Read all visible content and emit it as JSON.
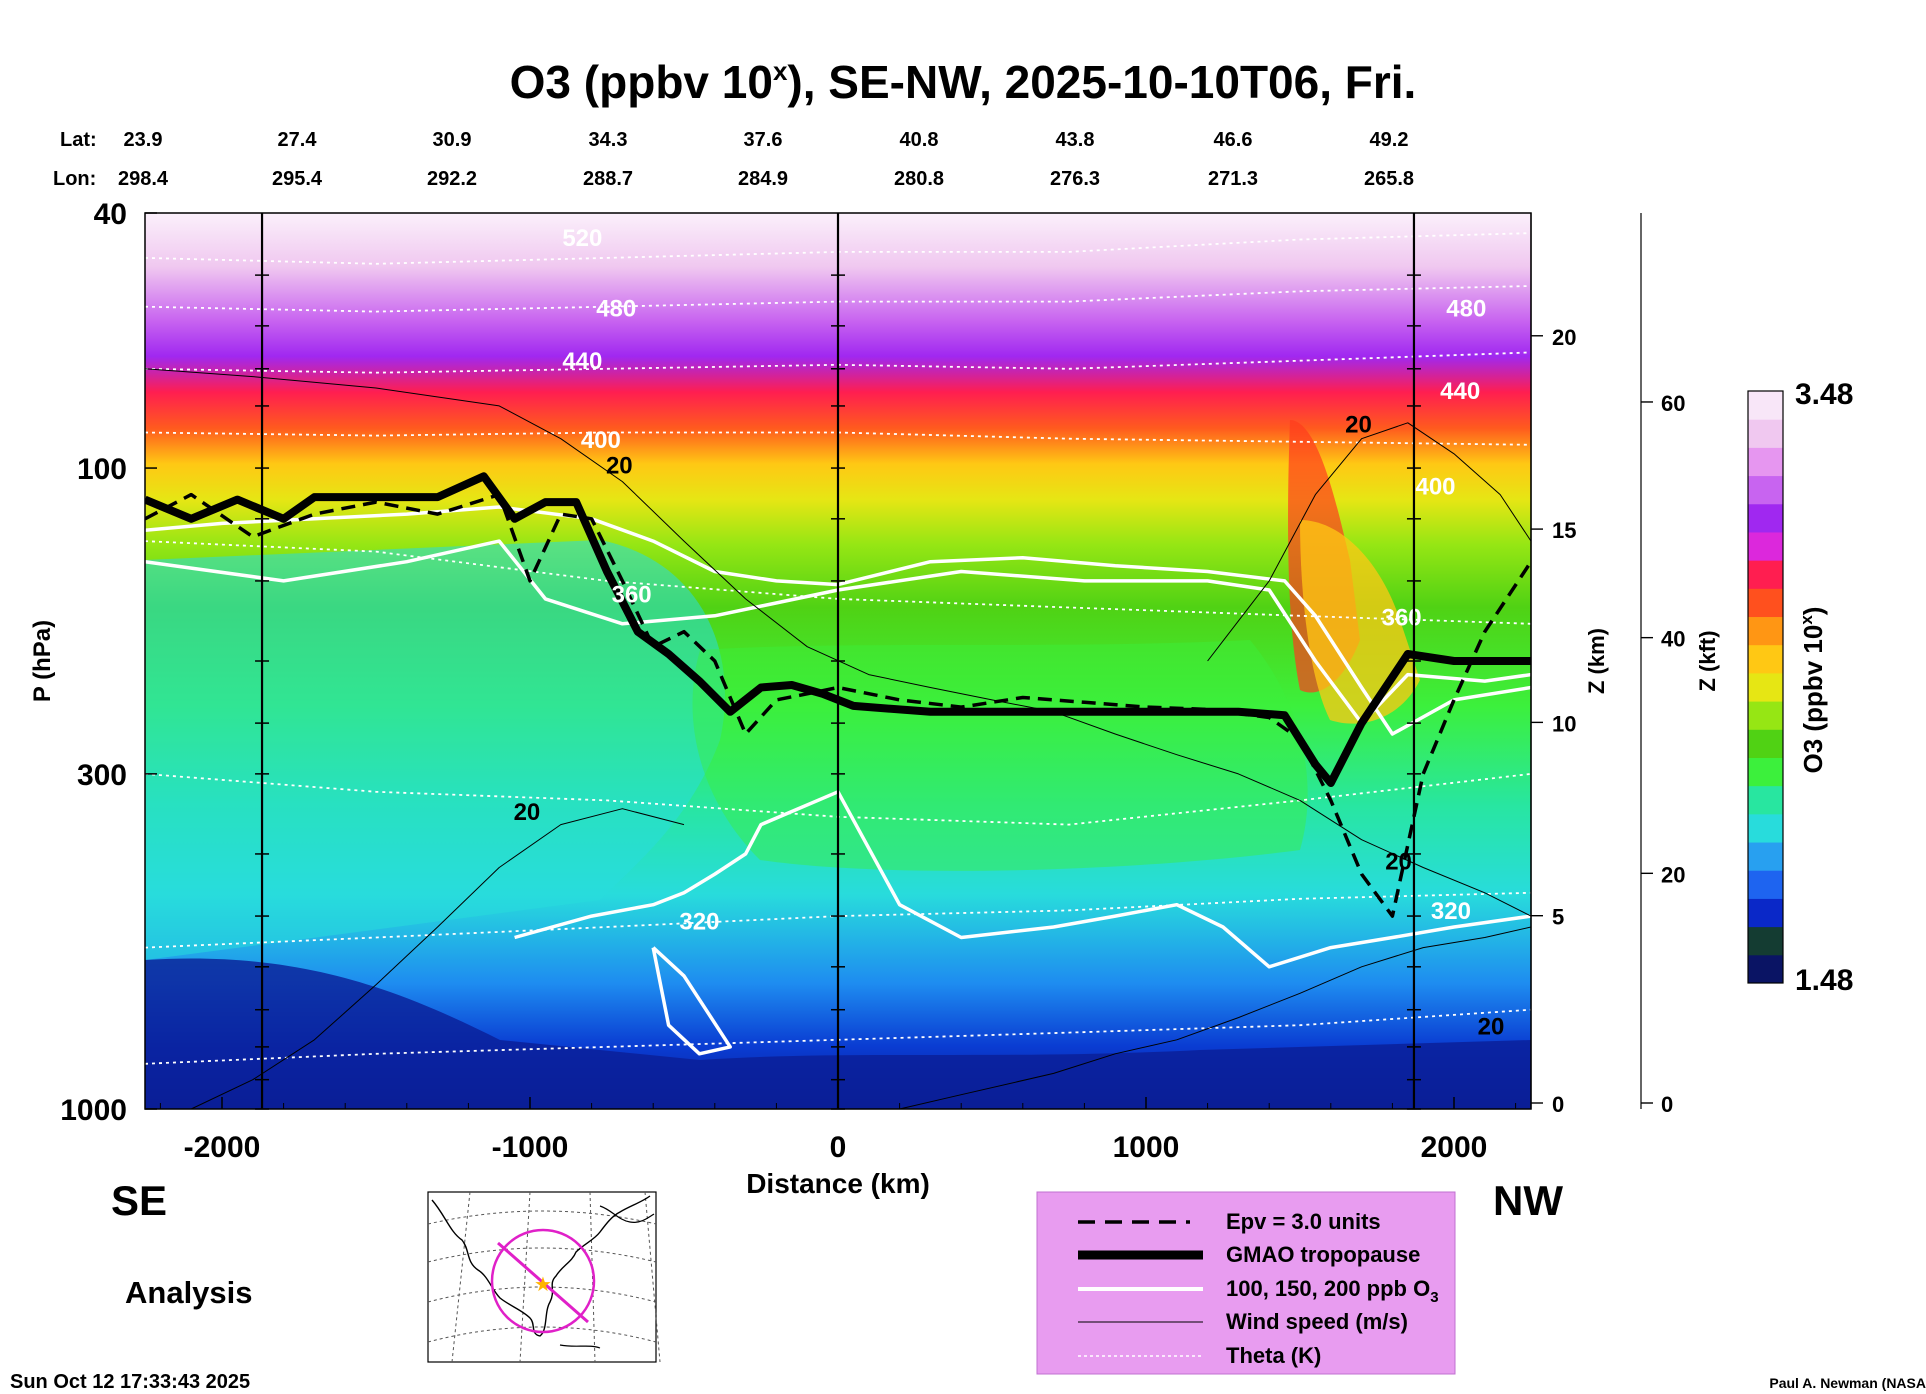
{
  "chart_data": {
    "type": "heatmap",
    "title": "O3 (ppbv 10",
    "title_sup": "x",
    "title_rest": "), SE-NW, 2025-10-10T06, Fri.",
    "lat_label": "Lat:",
    "lon_label": "Lon:",
    "lats": [
      "23.9",
      "27.4",
      "30.9",
      "34.3",
      "37.6",
      "40.8",
      "43.8",
      "46.6",
      "49.2"
    ],
    "lons": [
      "298.4",
      "295.4",
      "292.2",
      "288.7",
      "284.9",
      "280.8",
      "276.3",
      "271.3",
      "265.8"
    ],
    "xlabel": "Distance (km)",
    "xlim": [
      -2250,
      2250
    ],
    "xticks": [
      -2000,
      -1000,
      0,
      1000,
      2000
    ],
    "xtick_labels": [
      "-2000",
      "-1000",
      "0",
      "1000",
      "2000"
    ],
    "vlines_km": [
      -1870,
      0,
      1870
    ],
    "ylabel": "P (hPa)",
    "ylim": [
      1000,
      40
    ],
    "yscale": "log",
    "yticks": [
      40,
      100,
      300,
      1000
    ],
    "ytick_labels": [
      "40",
      "100",
      "300",
      "1000"
    ],
    "z_km_label": "Z (km)",
    "z_km_ticks": [
      0,
      5,
      10,
      15,
      20
    ],
    "z_km_labels": [
      "0",
      "5",
      "10",
      "15",
      "20"
    ],
    "z_kft_label": "Z (kft)",
    "z_kft_ticks": [
      0,
      20,
      40,
      60
    ],
    "z_kft_labels": [
      "0",
      "20",
      "40",
      "60"
    ],
    "colorbar_label": "O3 (ppbv 10",
    "colorbar_label_sup": "x",
    "colorbar_label_end": ")",
    "colorbar_range": [
      1.48,
      3.48
    ],
    "colorbar_max_label": "3.48",
    "colorbar_min_label": "1.48",
    "colorbar_colors": [
      "#0a1464",
      "#143c32",
      "#0a28c8",
      "#1e64f0",
      "#28a0f0",
      "#28dcdc",
      "#28e6a0",
      "#3cf03c",
      "#50d214",
      "#96e614",
      "#e6e614",
      "#ffc814",
      "#ff9614",
      "#ff501e",
      "#ff1e50",
      "#dc28dc",
      "#a028f0",
      "#c864f0",
      "#e696f0",
      "#f0c8f0",
      "#f8e6f8"
    ],
    "contour_labels": {
      "theta": [
        {
          "text": "520",
          "km": -830,
          "p": 45
        },
        {
          "text": "480",
          "km": -720,
          "p": 58
        },
        {
          "text": "440",
          "km": -830,
          "p": 70
        },
        {
          "text": "400",
          "km": -770,
          "p": 93
        },
        {
          "text": "360",
          "km": -670,
          "p": 162
        },
        {
          "text": "320",
          "km": -450,
          "p": 525
        },
        {
          "text": "480",
          "km": 2040,
          "p": 58
        },
        {
          "text": "440",
          "km": 2020,
          "p": 78
        },
        {
          "text": "400",
          "km": 1940,
          "p": 110
        },
        {
          "text": "360",
          "km": 1830,
          "p": 176
        },
        {
          "text": "320",
          "km": 1990,
          "p": 505
        }
      ],
      "wind": [
        {
          "text": "20",
          "km": -710,
          "p": 102
        },
        {
          "text": "20",
          "km": -1010,
          "p": 354
        },
        {
          "text": "20",
          "km": 1690,
          "p": 88
        },
        {
          "text": "20",
          "km": 1820,
          "p": 423
        },
        {
          "text": "20",
          "km": 2120,
          "p": 765
        }
      ]
    },
    "tropopause": {
      "km": [
        -2250,
        -2100,
        -1950,
        -1800,
        -1700,
        -1550,
        -1300,
        -1150,
        -1050,
        -950,
        -850,
        -750,
        -650,
        -550,
        -450,
        -350,
        -250,
        -150,
        -50,
        50,
        300,
        800,
        1300,
        1450,
        1550,
        1600,
        1700,
        1850,
        2000,
        2250
      ],
      "p": [
        112,
        120,
        112,
        120,
        111,
        111,
        111,
        103,
        120,
        113,
        113,
        145,
        180,
        195,
        215,
        240,
        220,
        218,
        225,
        235,
        240,
        240,
        240,
        243,
        290,
        310,
        250,
        195,
        200,
        200
      ]
    },
    "epv_line": {
      "km": [
        -2250,
        -2100,
        -1900,
        -1700,
        -1500,
        -1300,
        -1100,
        -1000,
        -900,
        -800,
        -700,
        -600,
        -500,
        -400,
        -300,
        -200,
        -100,
        0,
        200,
        400,
        600,
        800,
        1000,
        1200,
        1400,
        1500,
        1600,
        1700,
        1800,
        1900,
        2000,
        2100,
        2250
      ],
      "p": [
        120,
        110,
        128,
        118,
        113,
        118,
        110,
        150,
        118,
        120,
        150,
        190,
        180,
        200,
        260,
        230,
        225,
        220,
        230,
        236,
        228,
        232,
        236,
        238,
        245,
        265,
        330,
        430,
        500,
        300,
        230,
        180,
        140
      ]
    },
    "legend": {
      "epv": "Epv = 3.0 units",
      "tropopause": "GMAO tropopause",
      "o3_contours": "100, 150, 200 ppb O",
      "o3_sub": "3",
      "wind": "Wind speed (m/s)",
      "theta": "Theta (K)"
    },
    "left_label": "SE",
    "right_label": "NW",
    "analysis_label": "Analysis",
    "timestamp": "Sun Oct 12 17:33:43 2025",
    "credit": "Paul A. Newman (NASA"
  }
}
